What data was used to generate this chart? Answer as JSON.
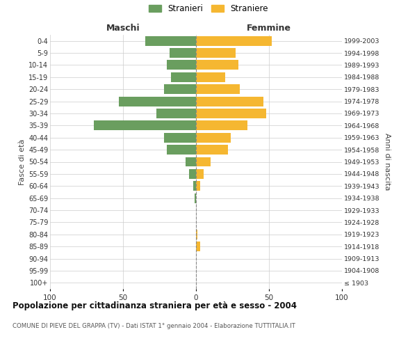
{
  "age_groups": [
    "100+",
    "95-99",
    "90-94",
    "85-89",
    "80-84",
    "75-79",
    "70-74",
    "65-69",
    "60-64",
    "55-59",
    "50-54",
    "45-49",
    "40-44",
    "35-39",
    "30-34",
    "25-29",
    "20-24",
    "15-19",
    "10-14",
    "5-9",
    "0-4"
  ],
  "birth_years": [
    "≤ 1903",
    "1904-1908",
    "1909-1913",
    "1914-1918",
    "1919-1923",
    "1924-1928",
    "1929-1933",
    "1934-1938",
    "1939-1943",
    "1944-1948",
    "1949-1953",
    "1954-1958",
    "1959-1963",
    "1964-1968",
    "1969-1973",
    "1974-1978",
    "1979-1983",
    "1984-1988",
    "1989-1993",
    "1994-1998",
    "1999-2003"
  ],
  "males": [
    0,
    0,
    0,
    0,
    0,
    0,
    0,
    1,
    2,
    5,
    7,
    20,
    22,
    70,
    27,
    53,
    22,
    17,
    20,
    18,
    35
  ],
  "females": [
    0,
    0,
    0,
    3,
    1,
    0,
    0,
    0,
    3,
    5,
    10,
    22,
    24,
    35,
    48,
    46,
    30,
    20,
    29,
    27,
    52
  ],
  "male_color": "#6a9e5f",
  "female_color": "#f5b731",
  "background_color": "#ffffff",
  "grid_color": "#cccccc",
  "title": "Popolazione per cittadinanza straniera per età e sesso - 2004",
  "subtitle": "COMUNE DI PIEVE DEL GRAPPA (TV) - Dati ISTAT 1° gennaio 2004 - Elaborazione TUTTITALIA.IT",
  "xlabel_left": "Maschi",
  "xlabel_right": "Femmine",
  "ylabel_left": "Fasce di età",
  "ylabel_right": "Anni di nascita",
  "legend_male": "Stranieri",
  "legend_female": "Straniere",
  "xlim": 100,
  "xticks": [
    -100,
    -50,
    0,
    50,
    100
  ],
  "xticklabels": [
    "100",
    "50",
    "0",
    "50",
    "100"
  ]
}
